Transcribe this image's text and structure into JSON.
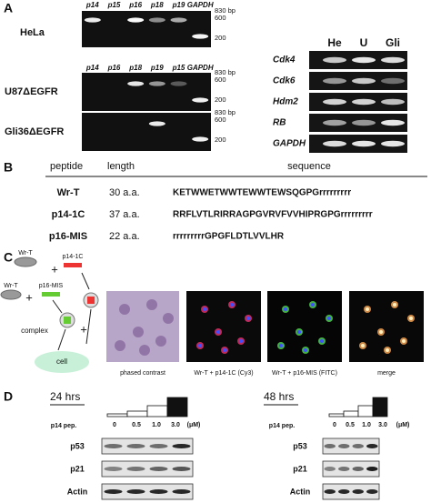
{
  "panel_a": {
    "label": "A",
    "gel_1": {
      "cell_line": "HeLa",
      "lanes": [
        "p14",
        "p15",
        "p16",
        "p18",
        "p19",
        "GAPDH"
      ],
      "markers": [
        "830 bp",
        "600",
        "200"
      ]
    },
    "gel_2": {
      "lanes": [
        "p14",
        "p16",
        "p18",
        "p19",
        "p15",
        "GAPDH"
      ],
      "rows": [
        {
          "cell_line": "U87ΔEGFR",
          "markers": [
            "830 bp",
            "600",
            "200"
          ]
        },
        {
          "cell_line": "Gli36ΔEGFR",
          "markers": [
            "830 bp",
            "600",
            "200"
          ]
        }
      ]
    },
    "gel_3": {
      "columns": [
        "He",
        "U",
        "Gli"
      ],
      "genes": [
        "Cdk4",
        "Cdk6",
        "Hdm2",
        "RB",
        "GAPDH"
      ]
    }
  },
  "panel_b": {
    "label": "B",
    "headers": [
      "peptide",
      "length",
      "sequence"
    ],
    "rows": [
      [
        "Wr-T",
        "30 a.a.",
        "KETWWETWWTEWWTEWSQGPGrrrrrrrrr"
      ],
      [
        "p14-1C",
        "37 a.a.",
        "RRFLVTLRIRRAGPGVRVFVVHIPRGPGrrrrrrrrr"
      ],
      [
        "p16-MIS",
        "22 a.a.",
        "rrrrrrrrrGPGFLDTLVVLHR"
      ]
    ]
  },
  "panel_c": {
    "label": "C",
    "diagram": {
      "wr_t_1": "Wr-T",
      "plus_1": "+",
      "p14_1c": "p14-1C",
      "wr_t_2": "Wr-T",
      "plus_2": "+",
      "p16_mis": "p16-MIS",
      "complex": "complex",
      "plus_3": "+",
      "cell": "cell"
    },
    "captions": [
      "phased contrast",
      "Wr-T + p14-1C (Cy3)",
      "Wr-T + p16-MIS (FITC)",
      "merge"
    ]
  },
  "panel_d": {
    "label": "D",
    "blots": [
      {
        "time": "24 hrs",
        "dose_label": "p14 pep.",
        "doses": [
          "0",
          "0.5",
          "1.0",
          "3.0"
        ],
        "unit": "(μM)",
        "proteins": [
          "p53",
          "p21",
          "Actin"
        ]
      },
      {
        "time": "48 hrs",
        "dose_label": "p14 pep.",
        "doses": [
          "0",
          "0.5",
          "1.0",
          "3.0"
        ],
        "unit": "(μM)",
        "proteins": [
          "p53",
          "p21",
          "Actin"
        ]
      }
    ]
  }
}
